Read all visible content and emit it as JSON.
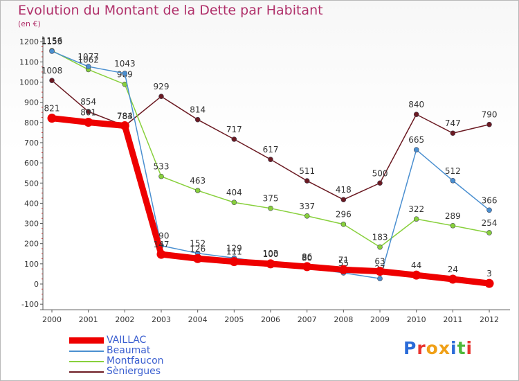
{
  "title": "Evolution du Montant de la Dette par Habitant",
  "subtitle": "(en €)",
  "logo": {
    "text": "Proxiti",
    "colors": [
      "#2a6bd8",
      "#e8322d",
      "#f0a017",
      "#f0a017",
      "#2a6bd8",
      "#4fb83a",
      "#e8322d"
    ]
  },
  "chart_data": {
    "type": "line",
    "title": "Evolution du Montant de la Dette par Habitant",
    "ylabel": "(en €)",
    "xlabel": "",
    "x": [
      "2000",
      "2001",
      "2002",
      "2003",
      "2004",
      "2005",
      "2006",
      "2007",
      "2008",
      "2009",
      "2010",
      "2011",
      "2012"
    ],
    "yticks": [
      "-100",
      "0",
      "100",
      "200",
      "300",
      "400",
      "500",
      "600",
      "700",
      "800",
      "900",
      "1000",
      "1100",
      "1200"
    ],
    "ylim": [
      -100,
      1200
    ],
    "grid": false,
    "legend_position": "bottom-left",
    "series": [
      {
        "name": "VAILLAC",
        "color": "#ee0000",
        "values": [
          821,
          801,
          784,
          147,
          126,
          111,
          100,
          86,
          71,
          63,
          44,
          24,
          3
        ]
      },
      {
        "name": "Beaumat",
        "color": "#4a8fd0",
        "values": [
          1153,
          1077,
          1043,
          190,
          152,
          129,
          103,
          80,
          55,
          27,
          665,
          512,
          366
        ]
      },
      {
        "name": "Montfaucon",
        "color": "#88d03c",
        "values": [
          1156,
          1062,
          989,
          533,
          463,
          404,
          375,
          337,
          296,
          183,
          322,
          289,
          254
        ]
      },
      {
        "name": "Sèniergues",
        "color": "#6b1a22",
        "values": [
          1008,
          854,
          783,
          929,
          814,
          717,
          617,
          511,
          418,
          500,
          840,
          747,
          790
        ]
      }
    ]
  }
}
